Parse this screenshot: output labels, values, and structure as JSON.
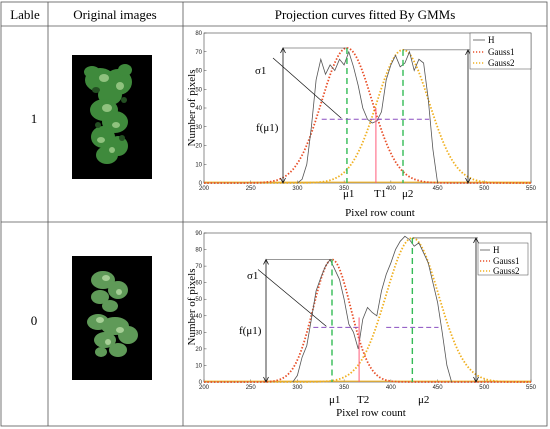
{
  "header": {
    "col_label": "Lable",
    "col_images": "Original images",
    "col_curves": "Projection curves fitted By GMMs"
  },
  "rows": [
    {
      "label": "1",
      "threshold_label": "T1"
    },
    {
      "label": "0",
      "threshold_label": "T2"
    }
  ],
  "colors": {
    "histogram": "#555555",
    "gauss1": "#e8502a",
    "gauss2": "#f0b020",
    "threshold": "#ff5a78",
    "mean_line": "#33bb55",
    "sigma_line": "#8a4fc0",
    "image_bg": "#000000",
    "foliage": "#3f8a3c"
  },
  "chart_data": [
    {
      "type": "line",
      "xlabel": "Pixel row count",
      "ylabel": "Number of pixels",
      "xlim": [
        200,
        550
      ],
      "ylim": [
        0,
        80
      ],
      "xticks": [
        200,
        250,
        300,
        350,
        400,
        450,
        500,
        550
      ],
      "yticks": [
        0,
        10,
        20,
        30,
        40,
        50,
        60,
        70,
        80
      ],
      "legend": [
        "H",
        "Gauss1",
        "Gauss2"
      ],
      "legend_position": "top-right",
      "annotations": [
        "σ1",
        "f(μ1)",
        "μ1",
        "μ2",
        "T1"
      ],
      "mu1": 353,
      "mu2": 413,
      "gauss1": {
        "amp": 72,
        "mu": 353,
        "sigma": 27
      },
      "gauss2": {
        "amp": 71,
        "mu": 413,
        "sigma": 28
      },
      "threshold": 384,
      "half_height": 34,
      "histogram": {
        "x": [
          300,
          305,
          310,
          315,
          320,
          325,
          330,
          335,
          340,
          345,
          350,
          355,
          360,
          365,
          370,
          375,
          380,
          385,
          390,
          395,
          400,
          405,
          410,
          415,
          420,
          425,
          430,
          435,
          440,
          445,
          450
        ],
        "y": [
          0,
          2,
          10,
          30,
          55,
          66,
          58,
          63,
          60,
          66,
          63,
          70,
          62,
          52,
          40,
          34,
          32,
          33,
          38,
          55,
          63,
          68,
          62,
          64,
          70,
          60,
          66,
          64,
          45,
          18,
          0
        ]
      }
    },
    {
      "type": "line",
      "xlabel": "Pixel row count",
      "ylabel": "Number of pixels",
      "xlim": [
        200,
        550
      ],
      "ylim": [
        0,
        90
      ],
      "xticks": [
        200,
        250,
        300,
        350,
        400,
        450,
        500,
        550
      ],
      "yticks": [
        0,
        10,
        20,
        30,
        40,
        50,
        60,
        70,
        80,
        90
      ],
      "legend": [
        "H",
        "Gauss1",
        "Gauss2"
      ],
      "legend_position": "top-right",
      "annotations": [
        "σ1",
        "f(μ1)",
        "μ1",
        "μ2",
        "T2"
      ],
      "mu1": 337,
      "mu2": 423,
      "gauss1": {
        "amp": 74,
        "mu": 337,
        "sigma": 20
      },
      "gauss2": {
        "amp": 87,
        "mu": 423,
        "sigma": 28
      },
      "threshold": 366,
      "half_height": 33,
      "histogram": {
        "x": [
          295,
          300,
          305,
          310,
          315,
          320,
          325,
          330,
          335,
          340,
          345,
          350,
          355,
          360,
          365,
          370,
          375,
          380,
          385,
          390,
          395,
          400,
          405,
          410,
          415,
          420,
          425,
          430,
          435,
          440,
          445,
          450,
          455,
          460,
          465
        ],
        "y": [
          0,
          4,
          15,
          22,
          38,
          55,
          63,
          70,
          74,
          68,
          62,
          50,
          35,
          30,
          20,
          38,
          45,
          42,
          40,
          55,
          65,
          72,
          80,
          85,
          88,
          86,
          82,
          84,
          78,
          72,
          60,
          48,
          30,
          10,
          0
        ]
      }
    }
  ]
}
